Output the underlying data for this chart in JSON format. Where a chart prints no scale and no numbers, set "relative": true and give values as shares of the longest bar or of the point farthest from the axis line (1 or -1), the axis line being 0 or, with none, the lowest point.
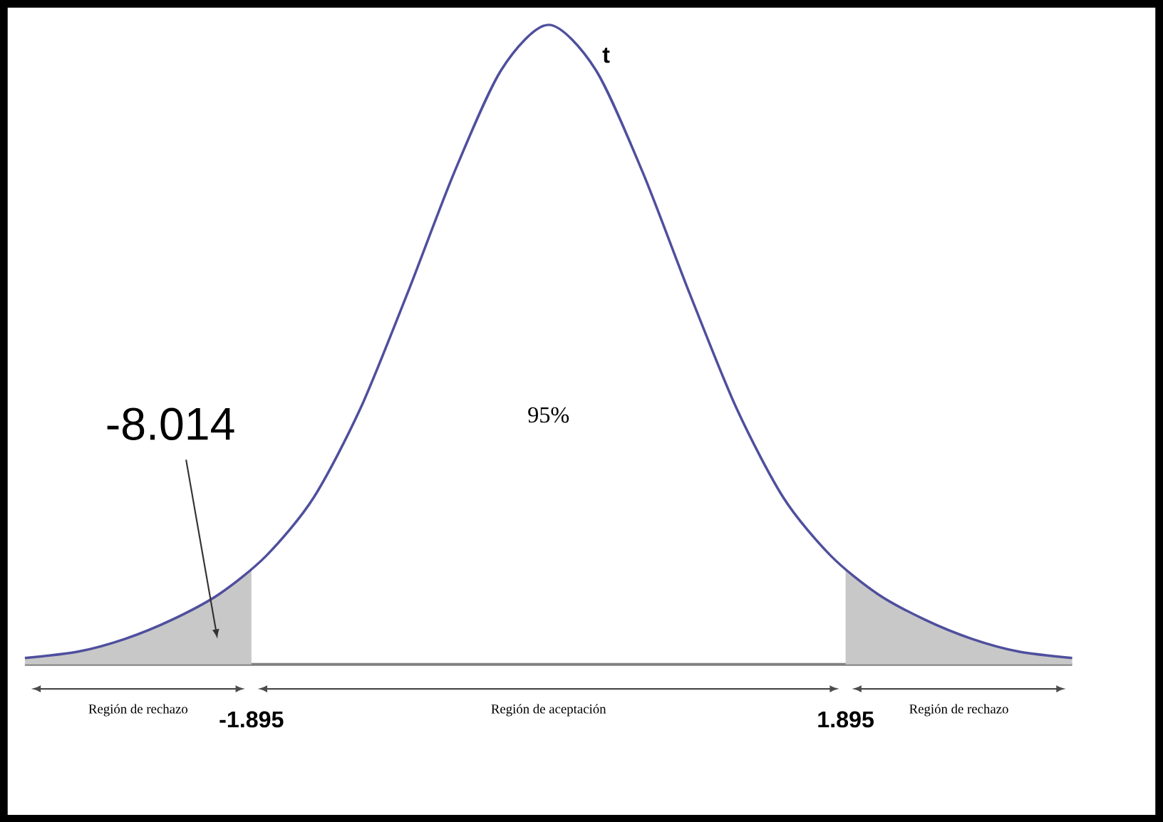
{
  "chart_data": {
    "type": "line",
    "relative": true,
    "xlim": [
      -3.34,
      3.34
    ],
    "xticks": [
      -1.895,
      1.895
    ],
    "annotations": [
      "-8.014",
      "95%",
      "Región de rechazo",
      "Región de aceptación",
      "Región de rechazo"
    ],
    "series": [
      {
        "type": "area",
        "color": "#c8c8c8",
        "x": [
          -3.34,
          -3.0,
          -2.7,
          -2.4,
          -2.1,
          -1.895
        ],
        "values": [
          0.01,
          0.02,
          0.04,
          0.07,
          0.11,
          0.15
        ]
      },
      {
        "type": "area",
        "color": "#c8c8c8",
        "x": [
          1.895,
          2.1,
          2.4,
          2.7,
          3.0,
          3.34
        ],
        "values": [
          0.15,
          0.11,
          0.07,
          0.04,
          0.02,
          0.01
        ]
      },
      {
        "name": "t",
        "color": "#4f4f9e",
        "x": [
          -3.34,
          -3.0,
          -2.7,
          -2.4,
          -2.1,
          -1.8,
          -1.5,
          -1.2,
          -0.9,
          -0.6,
          -0.3,
          0,
          0.3,
          0.6,
          0.9,
          1.2,
          1.5,
          1.8,
          2.1,
          2.4,
          2.7,
          3.0,
          3.34
        ],
        "values": [
          0.01,
          0.02,
          0.04,
          0.07,
          0.11,
          0.17,
          0.26,
          0.4,
          0.58,
          0.77,
          0.93,
          1.0,
          0.93,
          0.77,
          0.58,
          0.4,
          0.26,
          0.17,
          0.11,
          0.07,
          0.04,
          0.02,
          0.01
        ]
      }
    ]
  }
}
